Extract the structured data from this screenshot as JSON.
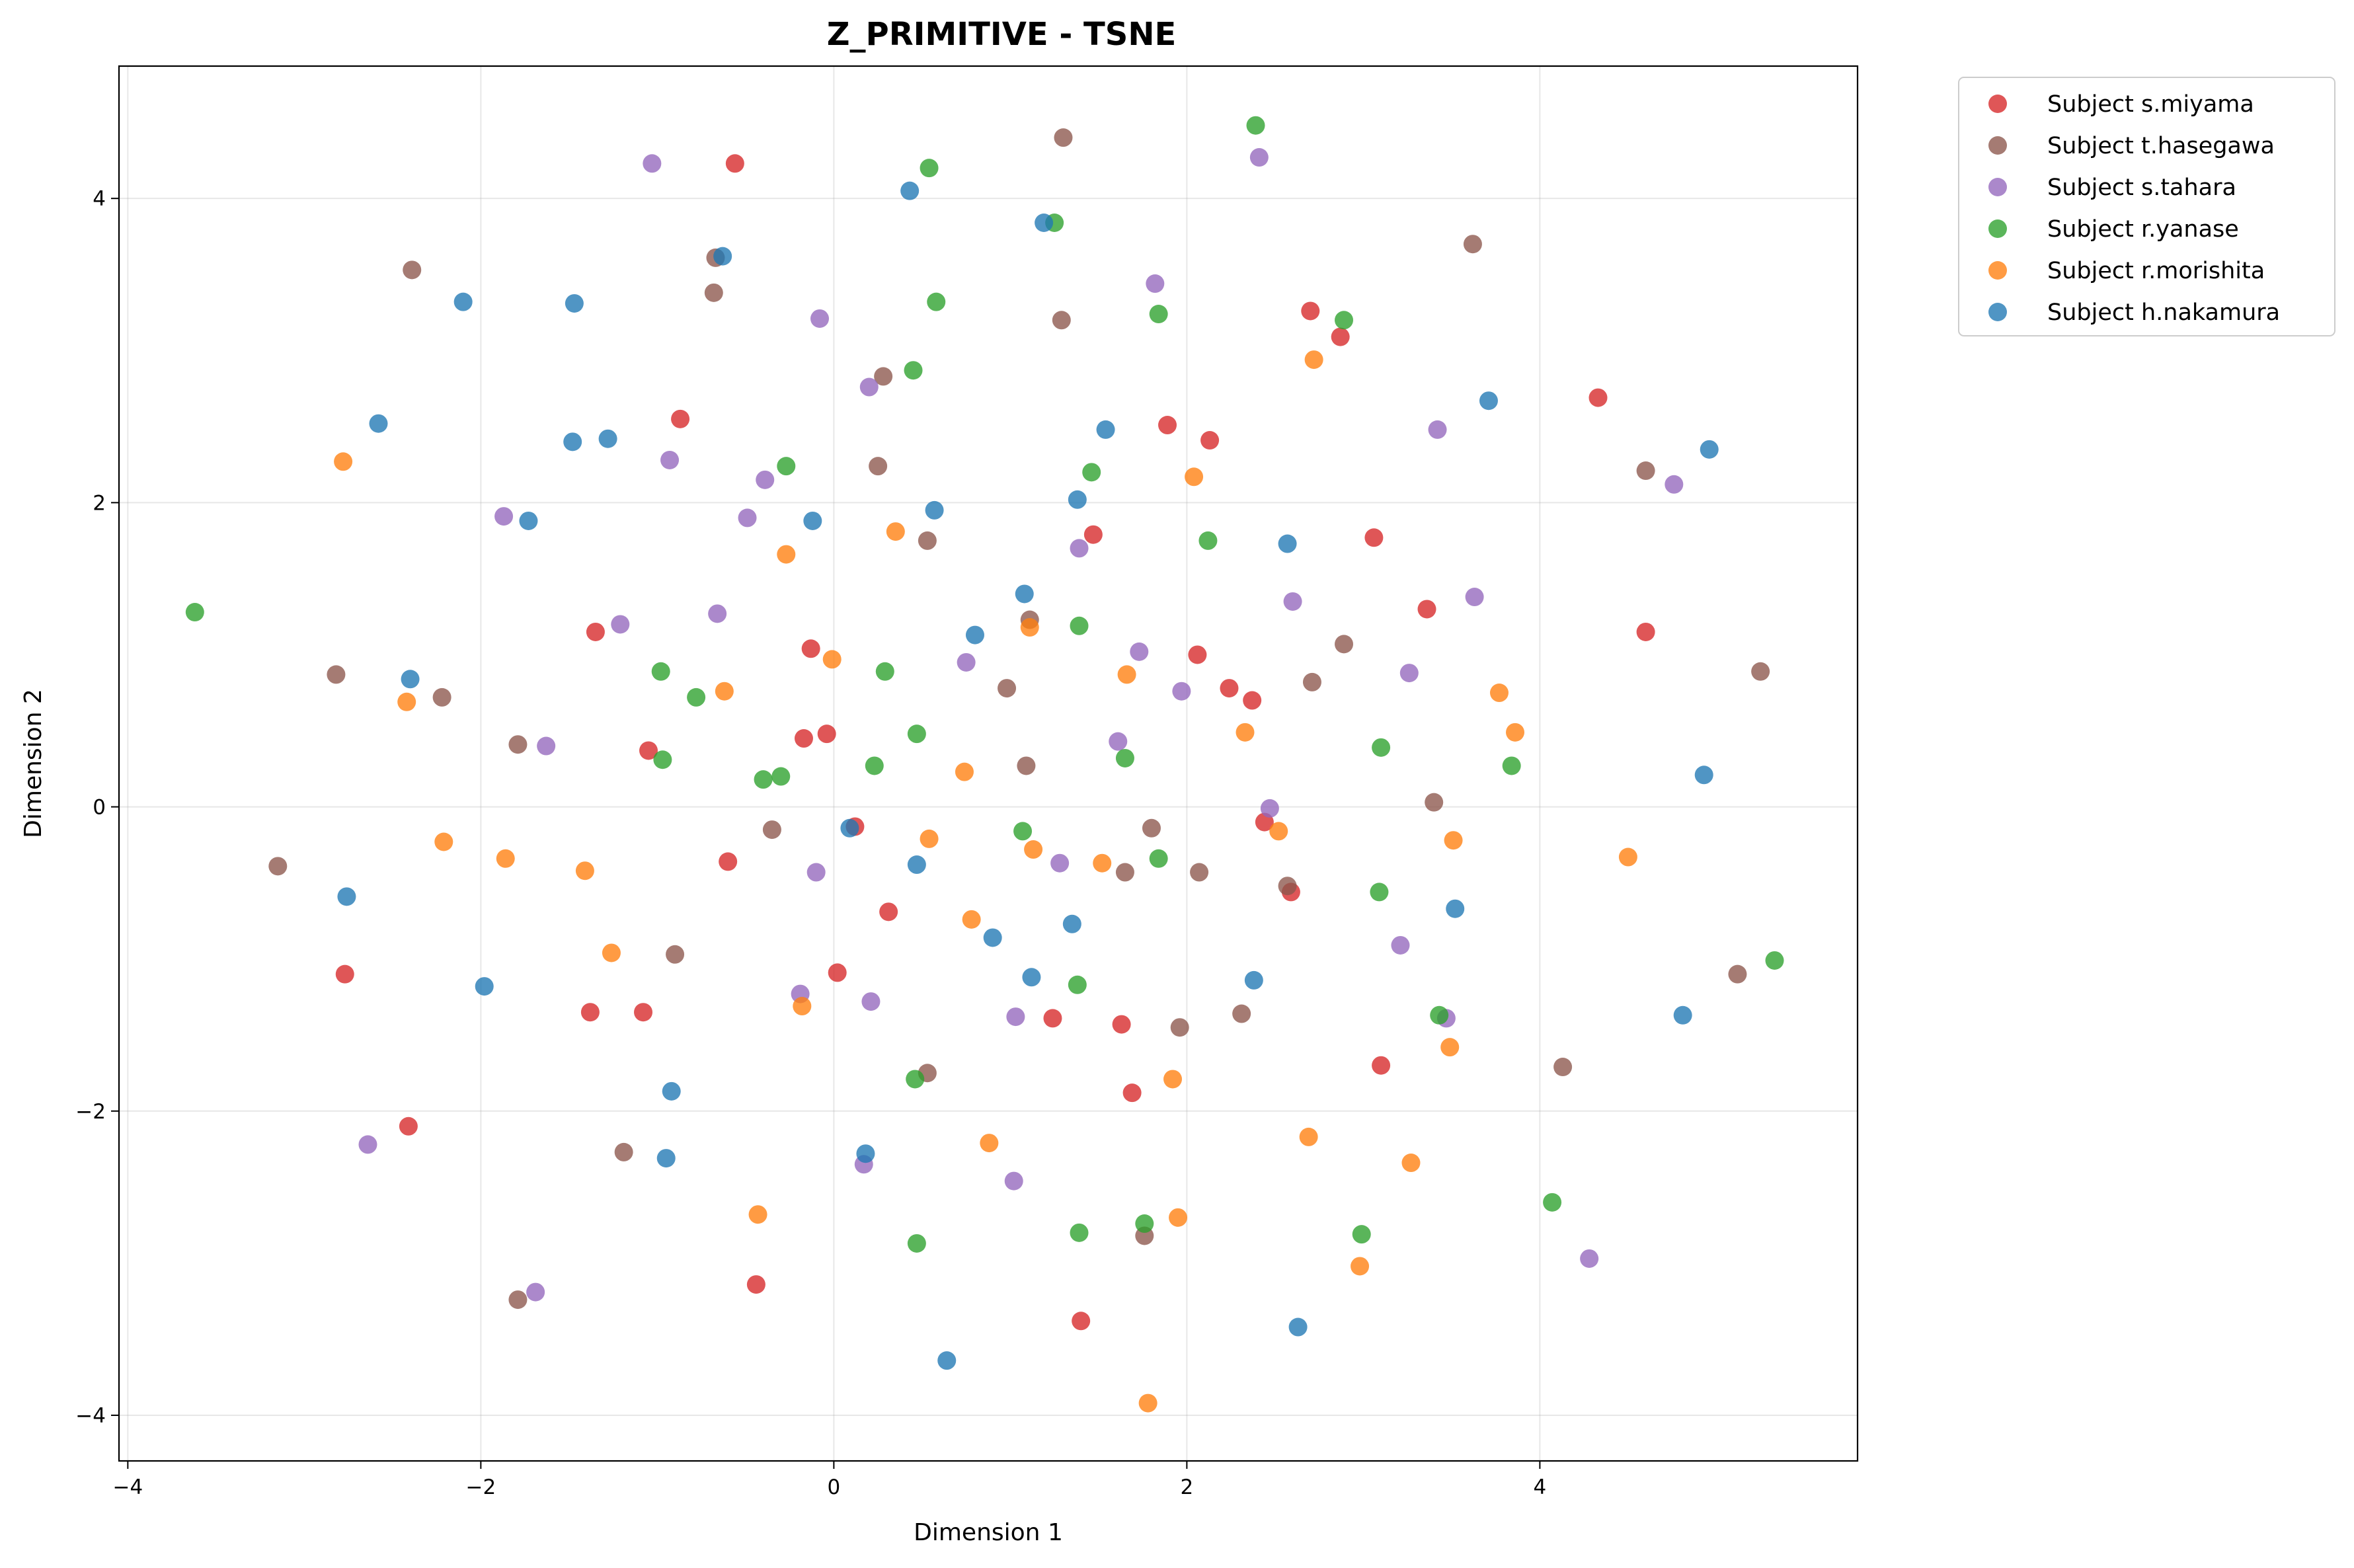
{
  "chart_data": {
    "type": "scatter",
    "title": "Z_PRIMITIVE - TSNE",
    "xlabel": "Dimension 1",
    "ylabel": "Dimension 2",
    "xlim": [
      -4.05,
      5.8
    ],
    "ylim": [
      -4.3,
      4.87
    ],
    "xticks": [
      -4,
      -2,
      0,
      2,
      4
    ],
    "yticks": [
      -4,
      -2,
      0,
      2,
      4
    ],
    "grid": true,
    "legend_position": "outside-top-right",
    "series": [
      {
        "name": "Subject s.miyama",
        "color": "#d62728",
        "points": [
          [
            -0.56,
            4.23
          ],
          [
            -0.87,
            2.55
          ],
          [
            -1.35,
            1.15
          ],
          [
            -0.13,
            1.04
          ],
          [
            -0.04,
            0.48
          ],
          [
            -0.17,
            0.45
          ],
          [
            -1.05,
            0.37
          ],
          [
            -0.6,
            -0.36
          ],
          [
            0.12,
            -0.13
          ],
          [
            0.31,
            -0.69
          ],
          [
            0.02,
            -1.09
          ],
          [
            -1.38,
            -1.35
          ],
          [
            -1.08,
            -1.35
          ],
          [
            -2.77,
            -1.1
          ],
          [
            -2.41,
            -2.1
          ],
          [
            -0.44,
            -3.14
          ],
          [
            1.24,
            -1.39
          ],
          [
            1.4,
            -3.38
          ],
          [
            1.63,
            -1.43
          ],
          [
            1.69,
            -1.88
          ],
          [
            1.47,
            1.79
          ],
          [
            1.89,
            2.51
          ],
          [
            2.13,
            2.41
          ],
          [
            2.06,
            1.0
          ],
          [
            2.24,
            0.78
          ],
          [
            2.37,
            0.7
          ],
          [
            2.44,
            -0.1
          ],
          [
            2.59,
            -0.56
          ],
          [
            2.7,
            3.26
          ],
          [
            2.87,
            3.09
          ],
          [
            3.06,
            1.77
          ],
          [
            3.36,
            1.3
          ],
          [
            3.1,
            -1.7
          ],
          [
            4.33,
            2.69
          ],
          [
            4.6,
            1.15
          ]
        ]
      },
      {
        "name": "Subject t.hasegawa",
        "color": "#8c564b",
        "points": [
          [
            -2.39,
            3.53
          ],
          [
            -0.67,
            3.61
          ],
          [
            -0.68,
            3.38
          ],
          [
            0.28,
            2.83
          ],
          [
            0.25,
            2.24
          ],
          [
            0.53,
            1.75
          ],
          [
            -2.82,
            0.87
          ],
          [
            -2.22,
            0.72
          ],
          [
            -1.79,
            0.41
          ],
          [
            -0.35,
            -0.15
          ],
          [
            -3.15,
            -0.39
          ],
          [
            -0.9,
            -0.97
          ],
          [
            -1.19,
            -2.27
          ],
          [
            -1.79,
            -3.24
          ],
          [
            0.53,
            -1.75
          ],
          [
            1.3,
            4.4
          ],
          [
            1.29,
            3.2
          ],
          [
            1.11,
            1.23
          ],
          [
            0.98,
            0.78
          ],
          [
            1.09,
            0.27
          ],
          [
            1.8,
            -0.14
          ],
          [
            1.65,
            -0.43
          ],
          [
            2.07,
            -0.43
          ],
          [
            1.96,
            -1.45
          ],
          [
            1.76,
            -2.82
          ],
          [
            2.31,
            -1.36
          ],
          [
            2.57,
            -0.52
          ],
          [
            2.71,
            0.82
          ],
          [
            2.89,
            1.07
          ],
          [
            3.4,
            0.03
          ],
          [
            3.62,
            3.7
          ],
          [
            4.6,
            2.21
          ],
          [
            5.25,
            0.89
          ],
          [
            5.12,
            -1.1
          ],
          [
            4.13,
            -1.71
          ]
        ]
      },
      {
        "name": "Subject s.tahara",
        "color": "#9467bd",
        "points": [
          [
            -1.03,
            4.23
          ],
          [
            -0.08,
            3.21
          ],
          [
            0.2,
            2.76
          ],
          [
            -0.93,
            2.28
          ],
          [
            -0.39,
            2.15
          ],
          [
            -0.49,
            1.9
          ],
          [
            -1.87,
            1.91
          ],
          [
            -1.21,
            1.2
          ],
          [
            -0.66,
            1.27
          ],
          [
            -1.63,
            0.4
          ],
          [
            -0.1,
            -0.43
          ],
          [
            -0.19,
            -1.23
          ],
          [
            0.21,
            -1.28
          ],
          [
            0.17,
            -2.35
          ],
          [
            -2.64,
            -2.22
          ],
          [
            -1.69,
            -3.19
          ],
          [
            1.03,
            -1.38
          ],
          [
            1.28,
            -0.37
          ],
          [
            1.02,
            -2.46
          ],
          [
            0.75,
            0.95
          ],
          [
            1.39,
            1.7
          ],
          [
            1.73,
            1.02
          ],
          [
            1.97,
            0.76
          ],
          [
            1.61,
            0.43
          ],
          [
            1.82,
            3.44
          ],
          [
            2.41,
            4.27
          ],
          [
            2.6,
            1.35
          ],
          [
            2.47,
            -0.01
          ],
          [
            3.26,
            0.88
          ],
          [
            3.21,
            -0.91
          ],
          [
            3.47,
            -1.39
          ],
          [
            3.42,
            2.48
          ],
          [
            3.63,
            1.38
          ],
          [
            4.76,
            2.12
          ],
          [
            4.28,
            -2.97
          ]
        ]
      },
      {
        "name": "Subject r.yanase",
        "color": "#2ca02c",
        "points": [
          [
            -3.62,
            1.28
          ],
          [
            0.54,
            4.2
          ],
          [
            0.58,
            3.32
          ],
          [
            0.45,
            2.87
          ],
          [
            -0.27,
            2.24
          ],
          [
            -0.98,
            0.89
          ],
          [
            -0.78,
            0.72
          ],
          [
            -0.97,
            0.31
          ],
          [
            -0.4,
            0.18
          ],
          [
            -0.3,
            0.2
          ],
          [
            0.23,
            0.27
          ],
          [
            0.29,
            0.89
          ],
          [
            0.47,
            0.48
          ],
          [
            1.07,
            -0.16
          ],
          [
            0.46,
            -1.79
          ],
          [
            0.47,
            -2.87
          ],
          [
            1.38,
            -1.17
          ],
          [
            1.39,
            -2.8
          ],
          [
            1.25,
            3.84
          ],
          [
            1.46,
            2.2
          ],
          [
            1.39,
            1.19
          ],
          [
            1.65,
            0.32
          ],
          [
            1.76,
            -2.74
          ],
          [
            1.84,
            -0.34
          ],
          [
            1.84,
            3.24
          ],
          [
            2.39,
            4.48
          ],
          [
            2.12,
            1.75
          ],
          [
            2.89,
            3.2
          ],
          [
            3.1,
            0.39
          ],
          [
            3.09,
            -0.56
          ],
          [
            2.99,
            -2.81
          ],
          [
            3.43,
            -1.37
          ],
          [
            3.84,
            0.27
          ],
          [
            4.07,
            -2.6
          ],
          [
            5.33,
            -1.01
          ]
        ]
      },
      {
        "name": "Subject r.morishita",
        "color": "#ff7f0e",
        "points": [
          [
            -2.78,
            2.27
          ],
          [
            -2.42,
            0.69
          ],
          [
            -2.21,
            -0.23
          ],
          [
            -1.86,
            -0.34
          ],
          [
            -1.41,
            -0.42
          ],
          [
            -1.26,
            -0.96
          ],
          [
            -0.62,
            0.76
          ],
          [
            -0.27,
            1.66
          ],
          [
            -0.01,
            0.97
          ],
          [
            0.35,
            1.81
          ],
          [
            0.54,
            -0.21
          ],
          [
            0.74,
            0.23
          ],
          [
            0.78,
            -0.74
          ],
          [
            -0.18,
            -1.31
          ],
          [
            -0.43,
            -2.68
          ],
          [
            0.88,
            -2.21
          ],
          [
            1.11,
            1.18
          ],
          [
            1.13,
            -0.28
          ],
          [
            1.52,
            -0.37
          ],
          [
            1.66,
            0.87
          ],
          [
            1.92,
            -1.79
          ],
          [
            1.95,
            -2.7
          ],
          [
            1.78,
            -3.92
          ],
          [
            2.04,
            2.17
          ],
          [
            2.33,
            0.49
          ],
          [
            2.52,
            -0.16
          ],
          [
            2.72,
            2.94
          ],
          [
            2.69,
            -2.17
          ],
          [
            2.98,
            -3.02
          ],
          [
            3.27,
            -2.34
          ],
          [
            3.49,
            -1.58
          ],
          [
            3.51,
            -0.22
          ],
          [
            3.77,
            0.75
          ],
          [
            3.86,
            0.49
          ],
          [
            4.5,
            -0.33
          ]
        ]
      },
      {
        "name": "Subject h.nakamura",
        "color": "#1f77b4",
        "points": [
          [
            -2.1,
            3.32
          ],
          [
            -1.47,
            3.31
          ],
          [
            -2.58,
            2.52
          ],
          [
            -1.48,
            2.4
          ],
          [
            -1.28,
            2.42
          ],
          [
            -1.73,
            1.88
          ],
          [
            -0.63,
            3.62
          ],
          [
            -0.12,
            1.88
          ],
          [
            -2.4,
            0.84
          ],
          [
            -2.76,
            -0.59
          ],
          [
            -1.98,
            -1.18
          ],
          [
            -0.92,
            -1.87
          ],
          [
            -0.95,
            -2.31
          ],
          [
            0.09,
            -0.14
          ],
          [
            0.47,
            -0.38
          ],
          [
            0.18,
            -2.28
          ],
          [
            0.64,
            -3.64
          ],
          [
            0.43,
            4.05
          ],
          [
            1.19,
            3.84
          ],
          [
            1.54,
            2.48
          ],
          [
            1.38,
            2.02
          ],
          [
            0.57,
            1.95
          ],
          [
            1.08,
            1.4
          ],
          [
            0.8,
            1.13
          ],
          [
            0.9,
            -0.86
          ],
          [
            1.35,
            -0.77
          ],
          [
            1.12,
            -1.12
          ],
          [
            2.57,
            1.73
          ],
          [
            2.38,
            -1.14
          ],
          [
            2.63,
            -3.42
          ],
          [
            3.52,
            -0.67
          ],
          [
            3.71,
            2.67
          ],
          [
            4.96,
            2.35
          ],
          [
            4.93,
            0.21
          ],
          [
            4.81,
            -1.37
          ]
        ]
      }
    ]
  }
}
